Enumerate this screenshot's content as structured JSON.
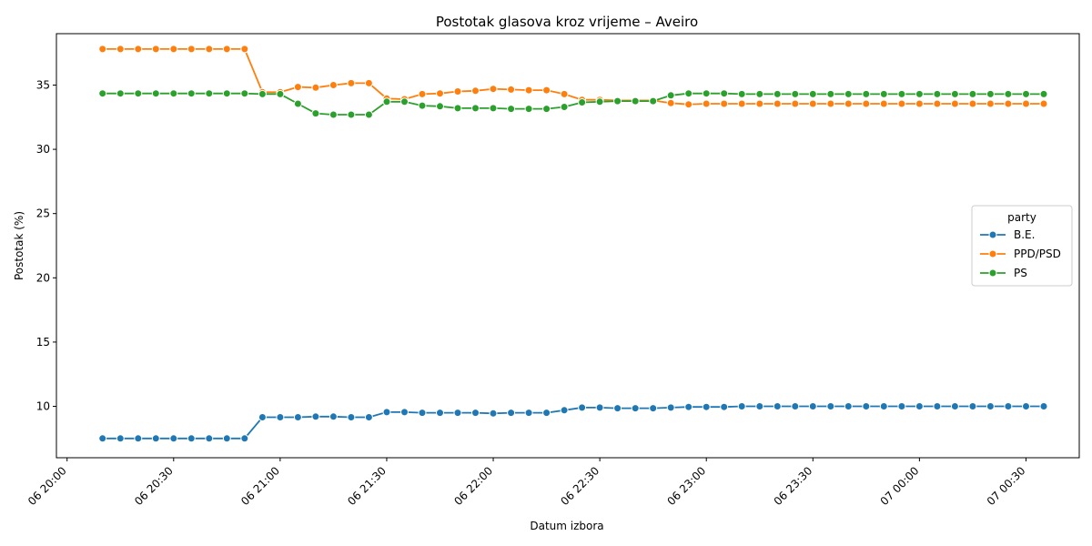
{
  "chart_data": {
    "type": "line",
    "title": "Postotak glasova kroz vrijeme – Aveiro",
    "xlabel": "Datum izbora",
    "ylabel": "Postotak (%)",
    "x_ticks": [
      "06 20:00",
      "06 20:30",
      "06 21:00",
      "06 21:30",
      "06 22:00",
      "06 22:30",
      "06 23:00",
      "06 23:30",
      "07 00:00",
      "07 00:30"
    ],
    "y_ticks": [
      10,
      15,
      20,
      25,
      30,
      35
    ],
    "xlim": [
      "06 19:57",
      "07 00:45"
    ],
    "ylim": [
      6.0,
      39.0
    ],
    "grid": false,
    "legend": {
      "title": "party",
      "position": "center-right"
    },
    "x": [
      "06 20:10",
      "06 20:15",
      "06 20:20",
      "06 20:25",
      "06 20:30",
      "06 20:35",
      "06 20:40",
      "06 20:45",
      "06 20:50",
      "06 20:55",
      "06 21:00",
      "06 21:05",
      "06 21:10",
      "06 21:15",
      "06 21:20",
      "06 21:25",
      "06 21:30",
      "06 21:35",
      "06 21:40",
      "06 21:45",
      "06 21:50",
      "06 21:55",
      "06 22:00",
      "06 22:05",
      "06 22:10",
      "06 22:15",
      "06 22:20",
      "06 22:25",
      "06 22:30",
      "06 22:35",
      "06 22:40",
      "06 22:45",
      "06 22:50",
      "06 22:55",
      "06 23:00",
      "06 23:05",
      "06 23:10",
      "06 23:15",
      "06 23:20",
      "06 23:25",
      "06 23:30",
      "06 23:35",
      "06 23:40",
      "06 23:45",
      "06 23:50",
      "06 23:55",
      "07 00:00",
      "07 00:05",
      "07 00:10",
      "07 00:15",
      "07 00:20",
      "07 00:25",
      "07 00:30",
      "07 00:35"
    ],
    "series": [
      {
        "name": "B.E.",
        "color": "#1f77b4",
        "values": [
          7.5,
          7.5,
          7.5,
          7.5,
          7.5,
          7.5,
          7.5,
          7.5,
          7.5,
          9.15,
          9.15,
          9.15,
          9.2,
          9.2,
          9.15,
          9.15,
          9.55,
          9.55,
          9.5,
          9.5,
          9.5,
          9.5,
          9.45,
          9.5,
          9.5,
          9.5,
          9.7,
          9.9,
          9.9,
          9.85,
          9.85,
          9.85,
          9.9,
          9.95,
          9.95,
          9.95,
          10.0,
          10.0,
          10.0,
          10.0,
          10.0,
          10.0,
          10.0,
          10.0,
          10.0,
          10.0,
          10.0,
          10.0,
          10.0,
          10.0,
          10.0,
          10.0,
          10.0,
          10.0
        ]
      },
      {
        "name": "PPD/PSD",
        "color": "#ff7f0e",
        "values": [
          37.8,
          37.8,
          37.8,
          37.8,
          37.8,
          37.8,
          37.8,
          37.8,
          37.8,
          34.45,
          34.45,
          34.85,
          34.8,
          35.0,
          35.15,
          35.15,
          33.95,
          33.9,
          34.3,
          34.35,
          34.5,
          34.55,
          34.7,
          34.65,
          34.6,
          34.6,
          34.3,
          33.85,
          33.85,
          33.8,
          33.8,
          33.8,
          33.6,
          33.5,
          33.55,
          33.55,
          33.55,
          33.55,
          33.55,
          33.55,
          33.55,
          33.55,
          33.55,
          33.55,
          33.55,
          33.55,
          33.55,
          33.55,
          33.55,
          33.55,
          33.55,
          33.55,
          33.55,
          33.55
        ]
      },
      {
        "name": "PS",
        "color": "#2ca02c",
        "values": [
          34.35,
          34.35,
          34.35,
          34.35,
          34.35,
          34.35,
          34.35,
          34.35,
          34.35,
          34.3,
          34.3,
          33.55,
          32.8,
          32.7,
          32.7,
          32.7,
          33.7,
          33.7,
          33.4,
          33.35,
          33.2,
          33.2,
          33.2,
          33.15,
          33.15,
          33.15,
          33.3,
          33.65,
          33.7,
          33.75,
          33.75,
          33.75,
          34.2,
          34.35,
          34.35,
          34.35,
          34.3,
          34.3,
          34.3,
          34.3,
          34.3,
          34.3,
          34.3,
          34.3,
          34.3,
          34.3,
          34.3,
          34.3,
          34.3,
          34.3,
          34.3,
          34.3,
          34.3,
          34.3
        ]
      }
    ]
  }
}
